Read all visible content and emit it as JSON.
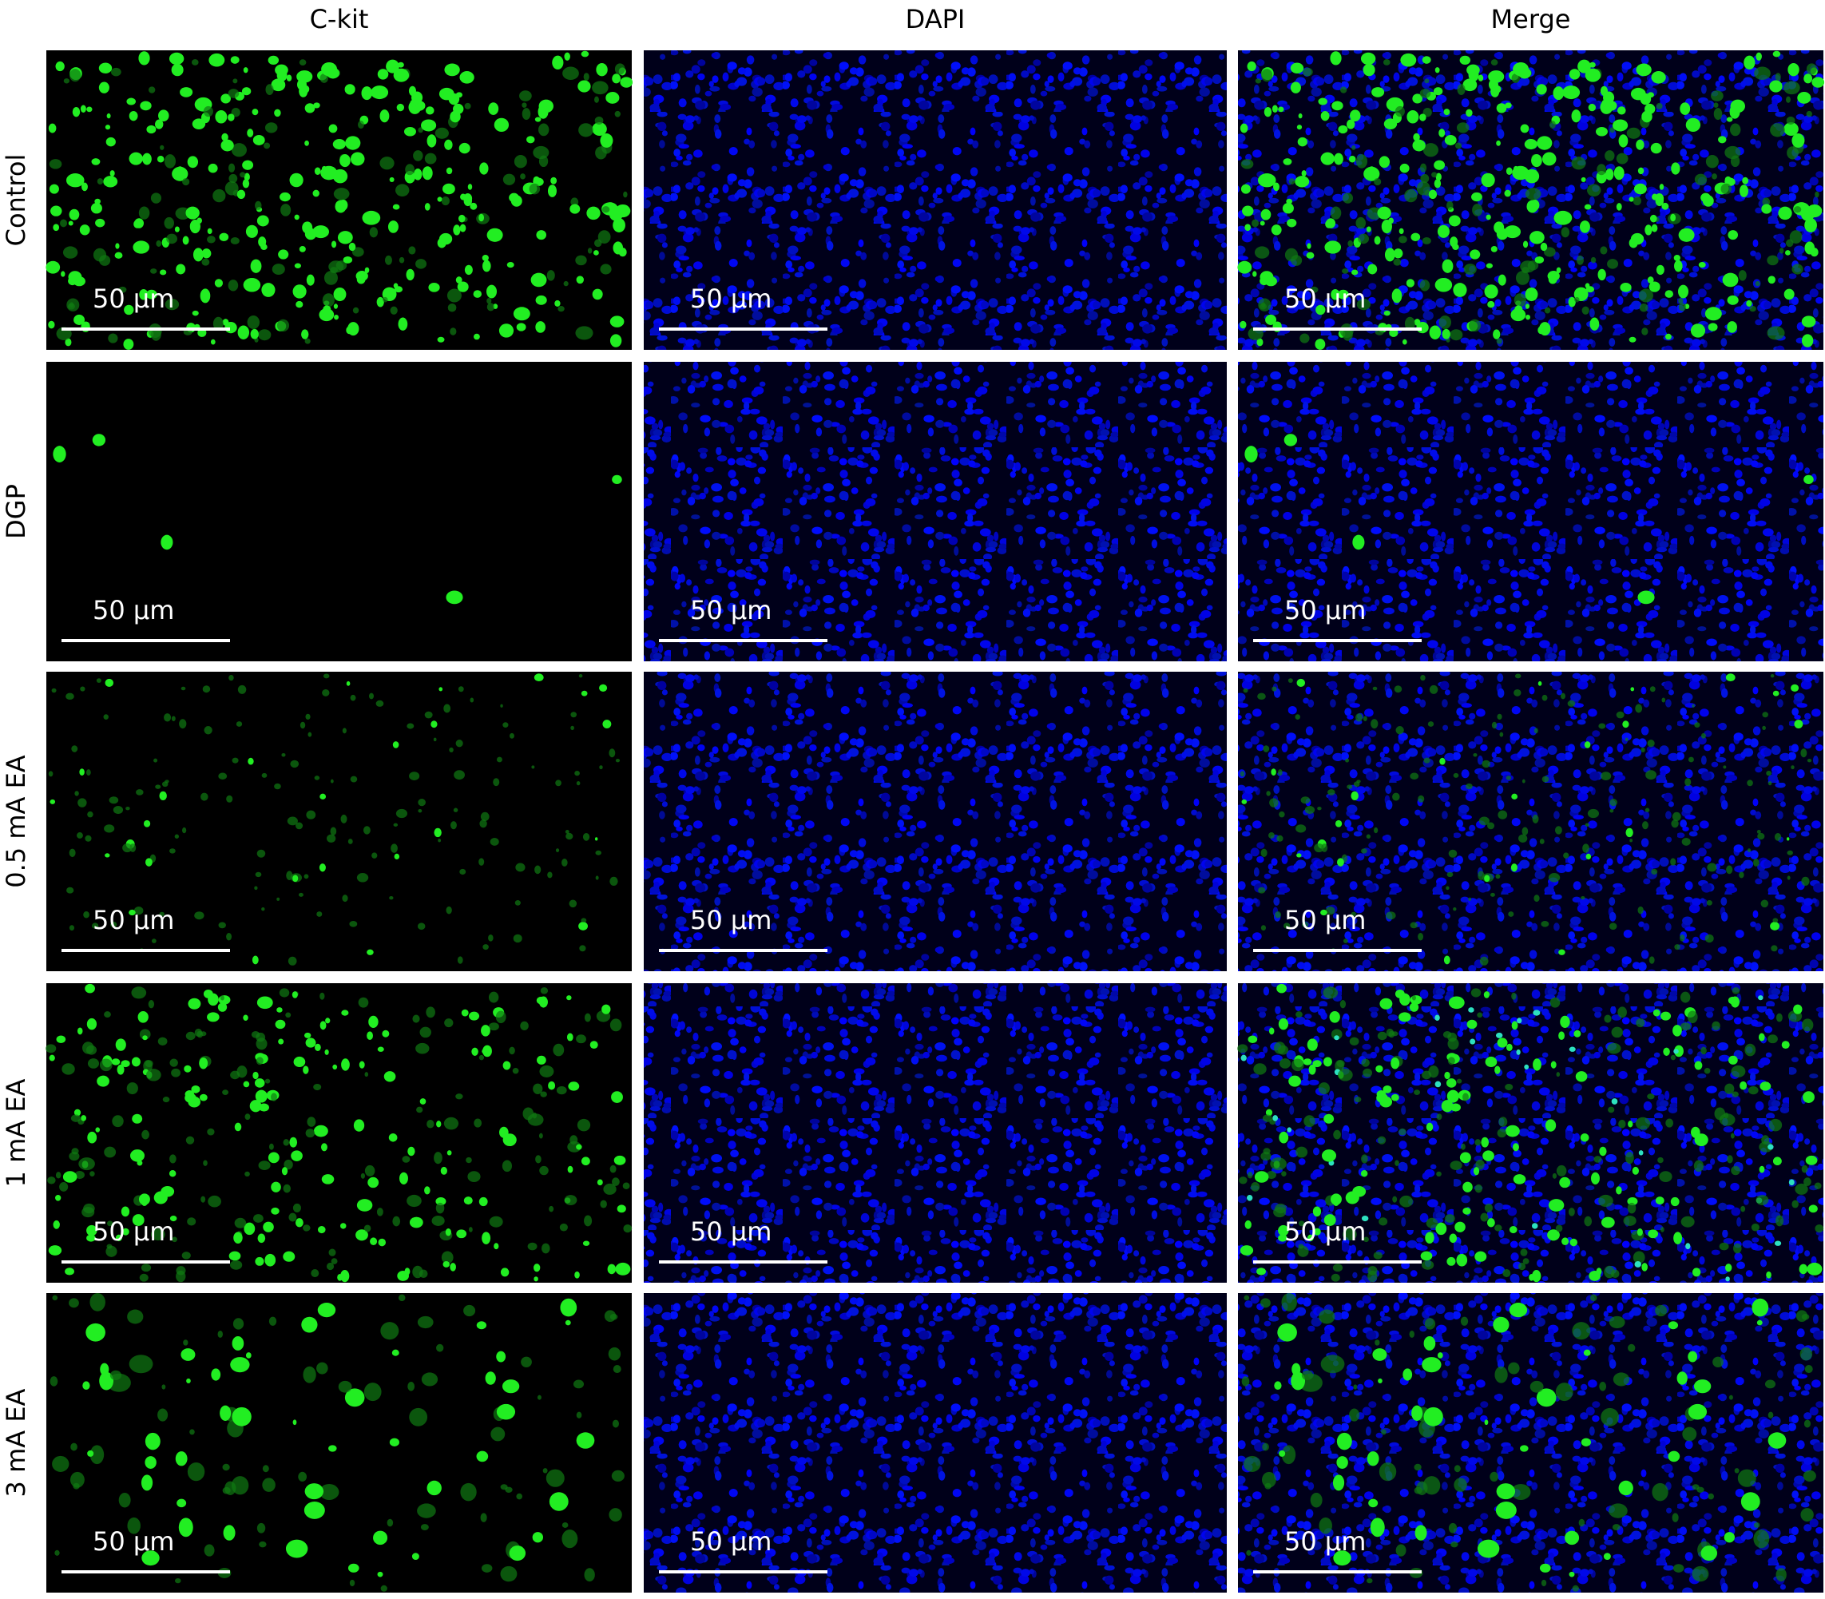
{
  "columns": [
    "C-kit",
    "DAPI",
    "Merge"
  ],
  "rows": [
    {
      "label": "Control",
      "panels": [
        {
          "scale_label": "50 μm"
        },
        {
          "scale_label": "50 μm"
        },
        {
          "scale_label": "50 μm"
        }
      ]
    },
    {
      "label": "DGP",
      "panels": [
        {
          "scale_label": "50 μm"
        },
        {
          "scale_label": "50 μm"
        },
        {
          "scale_label": "50 μm"
        }
      ]
    },
    {
      "label": "0.5 mA EA",
      "panels": [
        {
          "scale_label": "50 μm"
        },
        {
          "scale_label": "50 μm"
        },
        {
          "scale_label": "50 μm"
        }
      ]
    },
    {
      "label": "1 mA EA",
      "panels": [
        {
          "scale_label": "50 μm"
        },
        {
          "scale_label": "50 μm"
        },
        {
          "scale_label": "50 μm"
        }
      ]
    },
    {
      "label": "3 mA EA",
      "panels": [
        {
          "scale_label": "50 μm"
        },
        {
          "scale_label": "50 μm"
        },
        {
          "scale_label": "50 μm"
        }
      ]
    }
  ]
}
